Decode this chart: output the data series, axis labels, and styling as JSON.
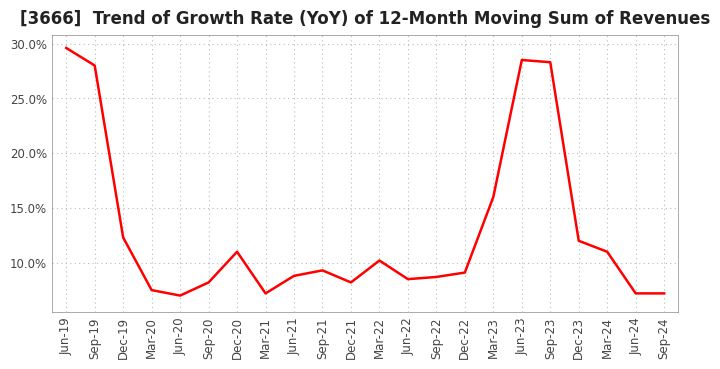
{
  "title": "[3666]  Trend of Growth Rate (YoY) of 12-Month Moving Sum of Revenues",
  "x_labels": [
    "Jun-19",
    "Sep-19",
    "Dec-19",
    "Mar-20",
    "Jun-20",
    "Sep-20",
    "Dec-20",
    "Mar-21",
    "Jun-21",
    "Sep-21",
    "Dec-21",
    "Mar-22",
    "Jun-22",
    "Sep-22",
    "Dec-22",
    "Mar-23",
    "Jun-23",
    "Sep-23",
    "Dec-23",
    "Mar-24",
    "Jun-24",
    "Sep-24"
  ],
  "y_values": [
    0.296,
    0.28,
    0.123,
    0.075,
    0.07,
    0.082,
    0.11,
    0.072,
    0.088,
    0.093,
    0.082,
    0.102,
    0.085,
    0.087,
    0.091,
    0.16,
    0.285,
    0.283,
    0.12,
    0.11,
    0.072,
    0.072
  ],
  "line_color": "#ff0000",
  "line_width": 1.8,
  "ylim_min": 0.055,
  "ylim_max": 0.308,
  "yticks": [
    0.1,
    0.15,
    0.2,
    0.25,
    0.3
  ],
  "background_color": "#ffffff",
  "grid_color": "#bbbbbb",
  "title_fontsize": 12,
  "tick_fontsize": 8.5
}
